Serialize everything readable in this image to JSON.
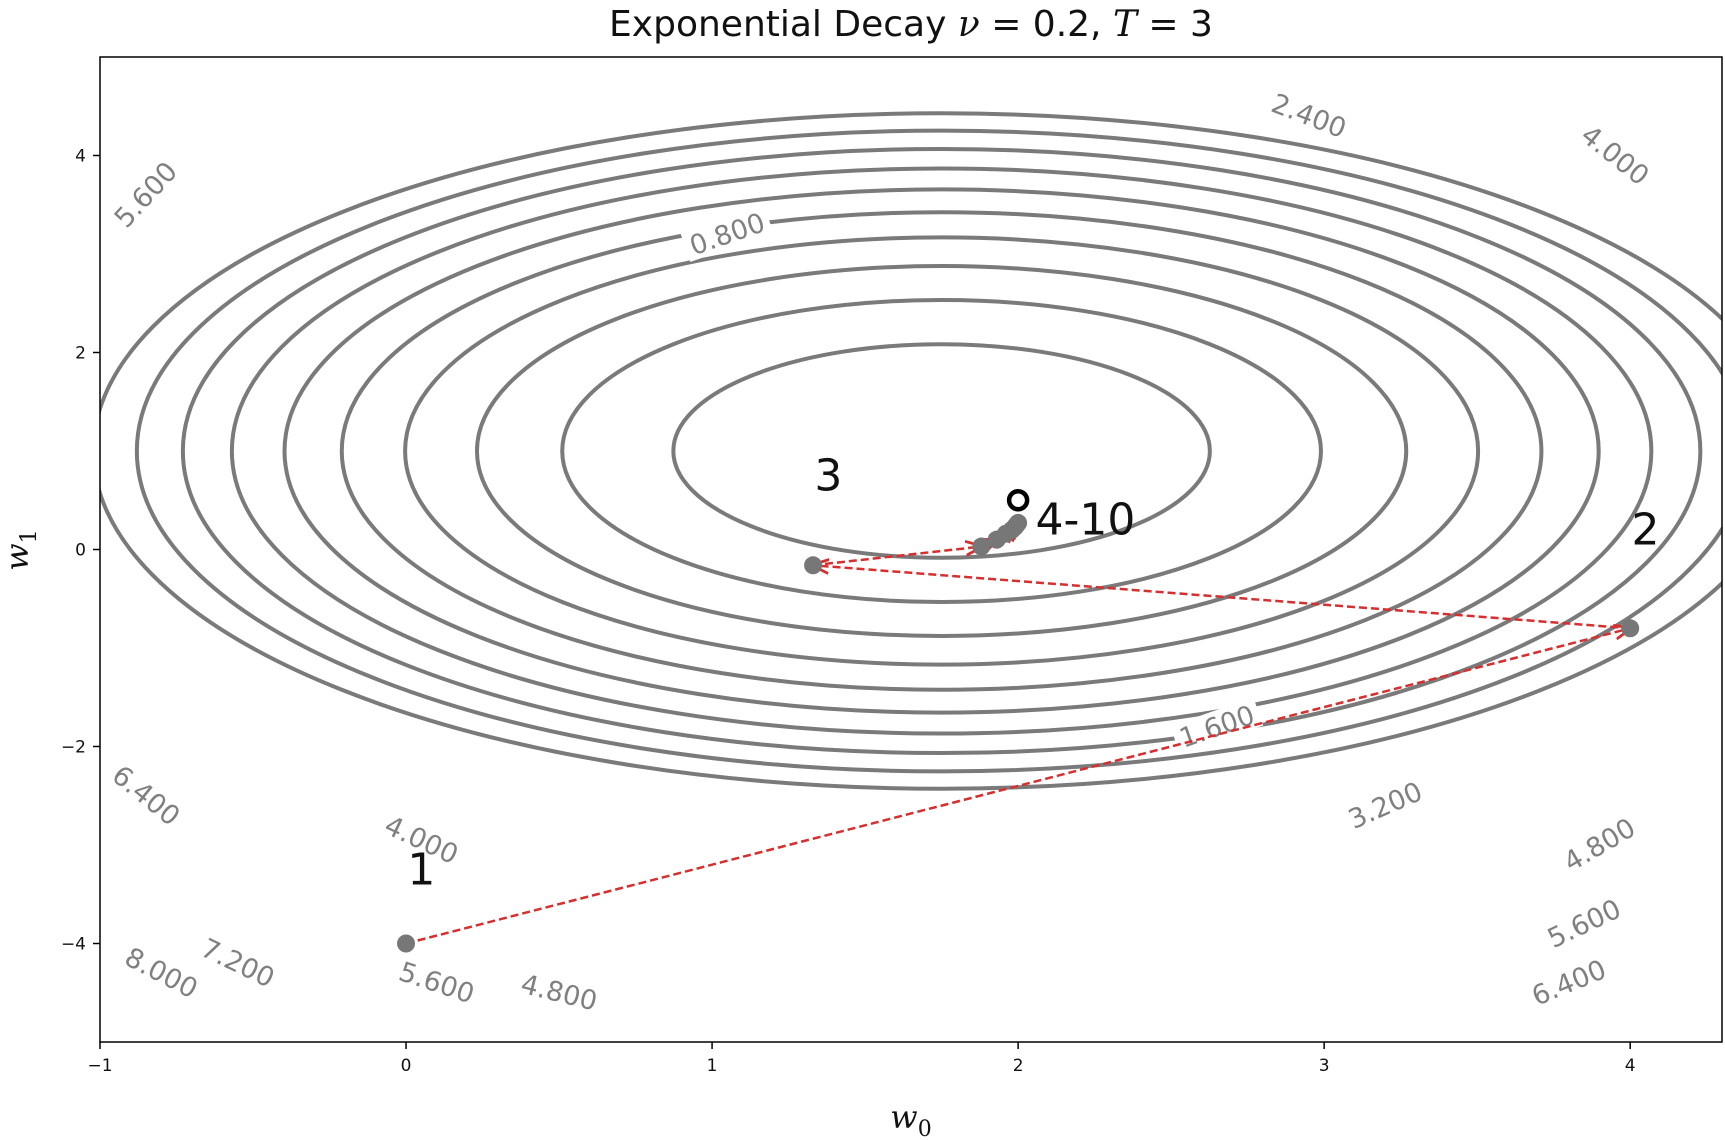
{
  "chart_data": {
    "type": "contour",
    "title": "Exponential Decay ν = 0.2, T = 3",
    "title_parts": [
      "Exponential Decay ",
      "ν",
      " = 0.2, ",
      "T",
      " = 3"
    ],
    "xlabel": "w0",
    "xlabel_parts": [
      "w",
      "0"
    ],
    "ylabel": "w1",
    "ylabel_parts": [
      "w",
      "1"
    ],
    "xlim": [
      -1,
      4.3
    ],
    "ylim": [
      -5,
      5
    ],
    "xticks": [
      -1,
      0,
      1,
      2,
      3,
      4
    ],
    "yticks": [
      -4,
      -2,
      0,
      2,
      4
    ],
    "xtick_labels": [
      "−1",
      "0",
      "1",
      "2",
      "3",
      "4"
    ],
    "ytick_labels": [
      "−4",
      "−2",
      "0",
      "2",
      "4"
    ],
    "grid": false,
    "contour_center": [
      1.75,
      1.0
    ],
    "contour_levels": [
      0.8,
      1.6,
      2.4,
      3.2,
      4.0,
      4.8,
      5.6,
      6.4,
      7.2,
      8.0
    ],
    "contour_labels": [
      {
        "text": "0.800",
        "x": 1.05,
        "y": 3.2
      },
      {
        "text": "1.600",
        "x": 2.65,
        "y": -1.8
      },
      {
        "text": "2.400",
        "x": 2.95,
        "y": 4.4
      },
      {
        "text": "3.200",
        "x": 3.2,
        "y": -2.6
      },
      {
        "text": "4.000",
        "x": 3.95,
        "y": 4.0
      },
      {
        "text": "4.000",
        "x": 0.05,
        "y": -2.95
      },
      {
        "text": "4.800",
        "x": 3.9,
        "y": -3.0
      },
      {
        "text": "4.800",
        "x": 0.5,
        "y": -4.5
      },
      {
        "text": "5.600",
        "x": -0.85,
        "y": 3.6
      },
      {
        "text": "5.600",
        "x": 0.1,
        "y": -4.4
      },
      {
        "text": "5.600",
        "x": 3.85,
        "y": -3.8
      },
      {
        "text": "6.400",
        "x": -0.85,
        "y": -2.5
      },
      {
        "text": "6.400",
        "x": 3.8,
        "y": -4.4
      },
      {
        "text": "7.200",
        "x": -0.55,
        "y": -4.2
      },
      {
        "text": "8.000",
        "x": -0.8,
        "y": -4.3
      }
    ],
    "iterates": [
      {
        "step": 1,
        "x": 0.0,
        "y": -4.0
      },
      {
        "step": 2,
        "x": 4.0,
        "y": -0.8
      },
      {
        "step": 3,
        "x": 1.33,
        "y": -0.16
      },
      {
        "step": 4,
        "x": 1.88,
        "y": 0.03
      },
      {
        "step": 5,
        "x": 1.93,
        "y": 0.1
      },
      {
        "step": 6,
        "x": 1.96,
        "y": 0.16
      },
      {
        "step": 7,
        "x": 1.98,
        "y": 0.2
      },
      {
        "step": 8,
        "x": 1.99,
        "y": 0.23
      },
      {
        "step": 9,
        "x": 1.995,
        "y": 0.25
      },
      {
        "step": 10,
        "x": 2.0,
        "y": 0.27
      }
    ],
    "optimum": {
      "x": 2.0,
      "y": 0.5
    },
    "point_labels": [
      {
        "text": "1",
        "x": 0.05,
        "y": -3.4
      },
      {
        "text": "2",
        "x": 4.05,
        "y": 0.05
      },
      {
        "text": "3",
        "x": 1.38,
        "y": 0.6
      },
      {
        "text": "4-10",
        "x": 2.22,
        "y": 0.15
      }
    ],
    "colors": {
      "contour": "#7a7a7a",
      "path": "#d62f2f",
      "point": "#777777",
      "optimum": "#000000"
    }
  }
}
